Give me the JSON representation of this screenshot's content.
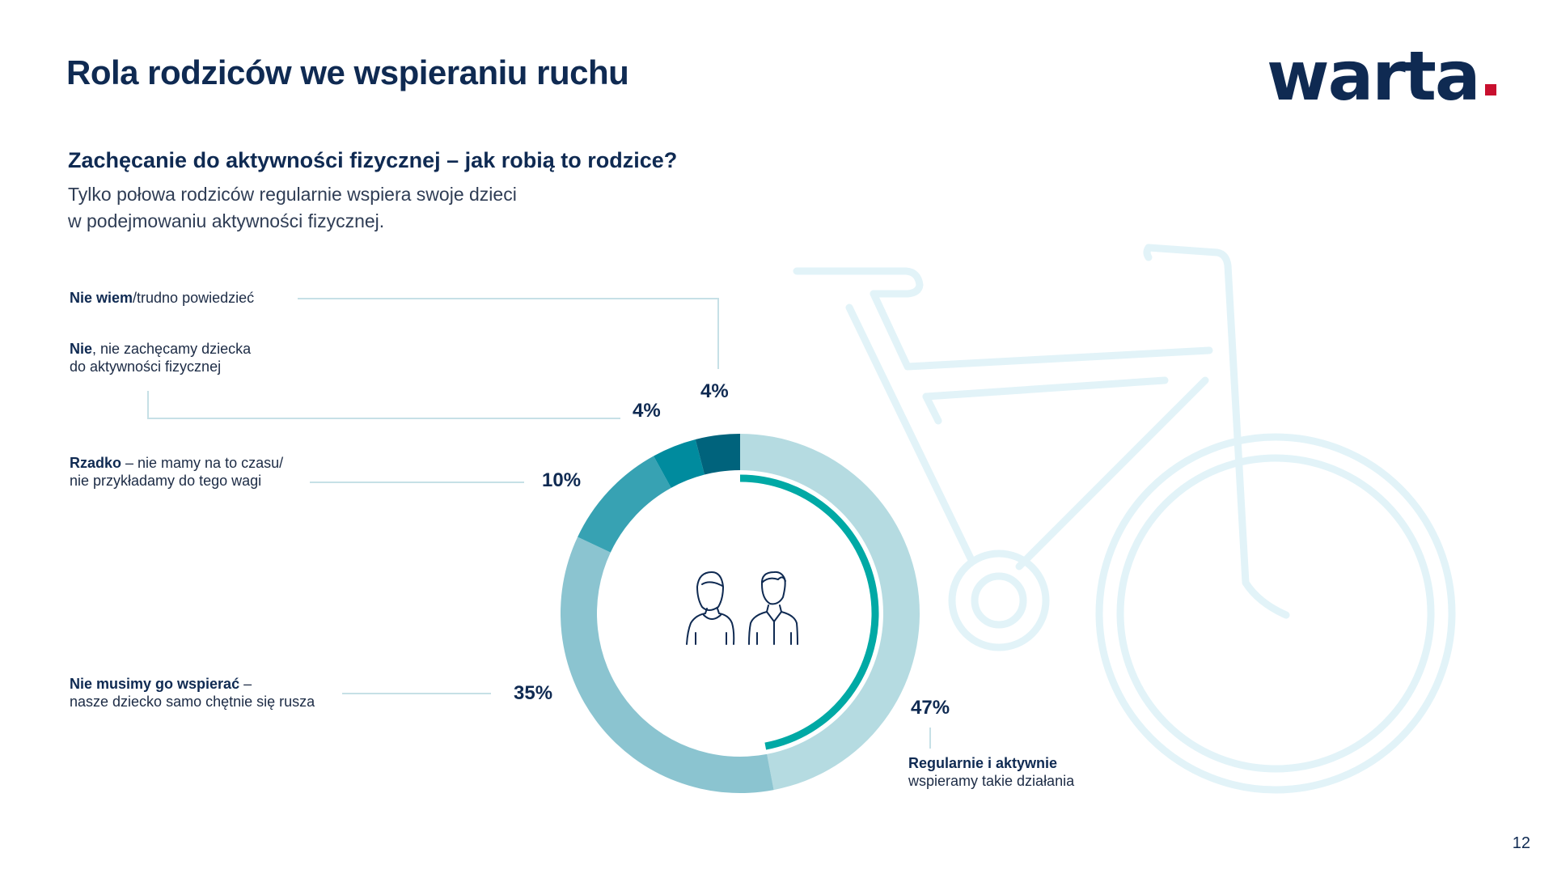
{
  "title": "Rola rodziców we wspieraniu ruchu",
  "logo": {
    "text": "warta",
    "dot_color": "#c8102e"
  },
  "subtitle": "Zachęcanie do aktywności fizycznej – jak robią to rodzice?",
  "description": {
    "line1": "Tylko połowa rodziców regularnie wspiera swoje dzieci",
    "line2": "w podejmowaniu aktywności fizycznej."
  },
  "page_number": "12",
  "icons": [
    "parents-icon",
    "bicycle-icon"
  ],
  "chart_data": {
    "type": "pie",
    "variant": "donut",
    "direction": "clockwise-from-top",
    "series": [
      {
        "value": 47,
        "label": "47%",
        "bold": "Regularnie i aktywnie",
        "rest": "wspieramy takie działania",
        "color": "#b5dbe1"
      },
      {
        "value": 35,
        "label": "35%",
        "bold": "Nie musimy go wspierać",
        "rest1": " –",
        "rest2": "nasze dziecko samo chętnie się rusza",
        "color": "#8bc4d0"
      },
      {
        "value": 10,
        "label": "10%",
        "bold": "Rzadko",
        "rest1": " – nie mamy na to czasu/",
        "rest2": "nie przykładamy do tego wagi",
        "color": "#37a2b3"
      },
      {
        "value": 4,
        "label": "4%",
        "bold": "Nie",
        "rest1": ", nie zachęcamy dziecka",
        "rest2": "do aktywności fizycznej",
        "color": "#008b9e"
      },
      {
        "value": 4,
        "label": "4%",
        "bold": "Nie wiem",
        "rest1": "/trudno powiedzieć",
        "color": "#00637c"
      }
    ],
    "highlight_arc_color": "#00a9a5",
    "leader_color": "#c6e0e6"
  }
}
